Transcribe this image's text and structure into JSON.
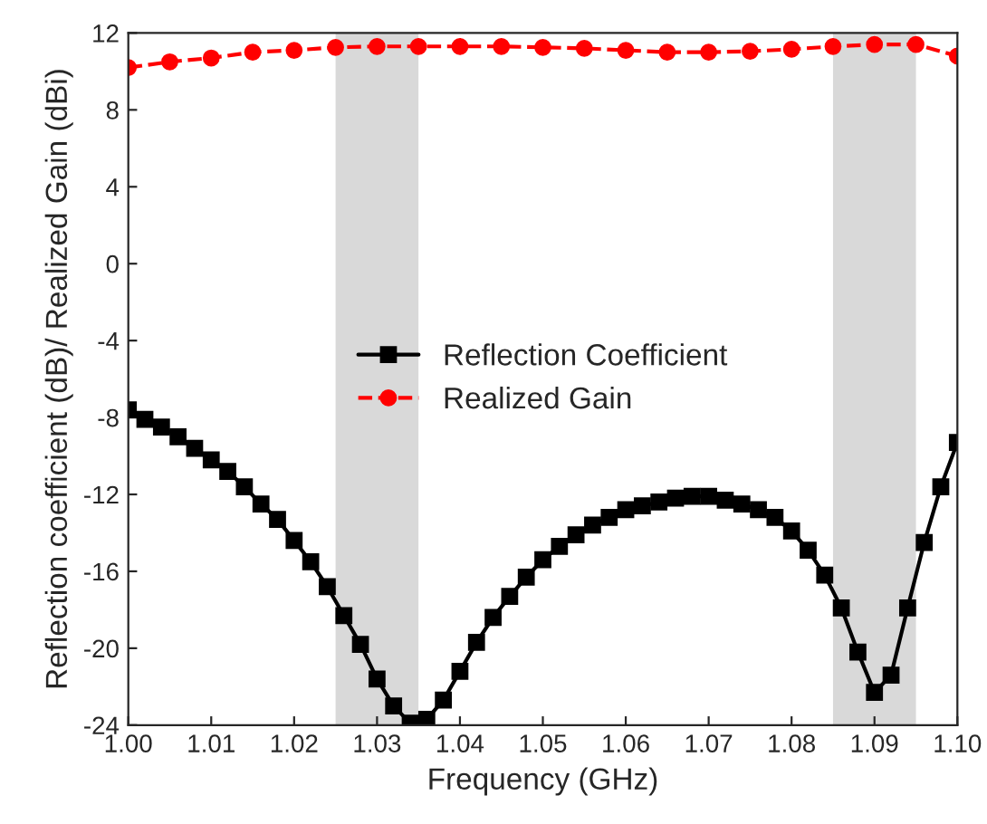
{
  "chart_data": {
    "type": "line",
    "xlabel": "Frequency (GHz)",
    "ylabel": "Reflection coefficient (dB)/ Realized Gain (dBi)",
    "xlim": [
      1.0,
      1.1
    ],
    "ylim": [
      -24,
      12
    ],
    "xticks": [
      {
        "value": 1.0,
        "label": "1.00"
      },
      {
        "value": 1.01,
        "label": "1.01"
      },
      {
        "value": 1.02,
        "label": "1.02"
      },
      {
        "value": 1.03,
        "label": "1.03"
      },
      {
        "value": 1.04,
        "label": "1.04"
      },
      {
        "value": 1.05,
        "label": "1.05"
      },
      {
        "value": 1.06,
        "label": "1.06"
      },
      {
        "value": 1.07,
        "label": "1.07"
      },
      {
        "value": 1.08,
        "label": "1.08"
      },
      {
        "value": 1.09,
        "label": "1.09"
      },
      {
        "value": 1.1,
        "label": "1.10"
      }
    ],
    "yticks": [
      -24,
      -20,
      -16,
      -12,
      -8,
      -4,
      0,
      4,
      8,
      12
    ],
    "grid": false,
    "legend": "center",
    "line_style": "solid",
    "bands": [
      {
        "axis": "x",
        "from": 1.025,
        "to": 1.035,
        "color": "#d9d9d9"
      },
      {
        "axis": "x",
        "from": 1.085,
        "to": 1.095,
        "color": "#d9d9d9"
      }
    ],
    "series": [
      {
        "name": "Reflection Coefficient",
        "color": "#000000",
        "marker": "square",
        "x": [
          1.0,
          1.002,
          1.004,
          1.006,
          1.008,
          1.01,
          1.012,
          1.014,
          1.016,
          1.018,
          1.02,
          1.022,
          1.024,
          1.026,
          1.028,
          1.03,
          1.032,
          1.034,
          1.036,
          1.038,
          1.04,
          1.042,
          1.044,
          1.046,
          1.048,
          1.05,
          1.052,
          1.054,
          1.056,
          1.058,
          1.06,
          1.062,
          1.064,
          1.066,
          1.068,
          1.07,
          1.072,
          1.074,
          1.076,
          1.078,
          1.08,
          1.082,
          1.084,
          1.086,
          1.088,
          1.09,
          1.092,
          1.094,
          1.096,
          1.098,
          1.1
        ],
        "values": [
          -7.6,
          -8.1,
          -8.5,
          -9.0,
          -9.6,
          -10.2,
          -10.8,
          -11.6,
          -12.5,
          -13.3,
          -14.4,
          -15.5,
          -16.8,
          -18.3,
          -19.8,
          -21.6,
          -23.0,
          -23.9,
          -23.7,
          -22.7,
          -21.2,
          -19.7,
          -18.4,
          -17.3,
          -16.3,
          -15.4,
          -14.7,
          -14.1,
          -13.6,
          -13.2,
          -12.8,
          -12.6,
          -12.4,
          -12.2,
          -12.1,
          -12.1,
          -12.3,
          -12.5,
          -12.8,
          -13.2,
          -13.9,
          -14.9,
          -16.2,
          -17.9,
          -20.2,
          -22.3,
          -21.4,
          -17.9,
          -14.5,
          -11.6,
          -9.3
        ]
      },
      {
        "name": "Realized Gain",
        "color": "#ff0000",
        "marker": "circle",
        "line_style": "dashed",
        "x": [
          1.0,
          1.005,
          1.01,
          1.015,
          1.02,
          1.025,
          1.03,
          1.035,
          1.04,
          1.045,
          1.05,
          1.055,
          1.06,
          1.065,
          1.07,
          1.075,
          1.08,
          1.085,
          1.09,
          1.095,
          1.1
        ],
        "values": [
          10.2,
          10.5,
          10.7,
          11.0,
          11.1,
          11.25,
          11.3,
          11.3,
          11.3,
          11.3,
          11.25,
          11.2,
          11.1,
          11.0,
          11.0,
          11.05,
          11.15,
          11.3,
          11.4,
          11.4,
          10.8
        ]
      }
    ]
  }
}
